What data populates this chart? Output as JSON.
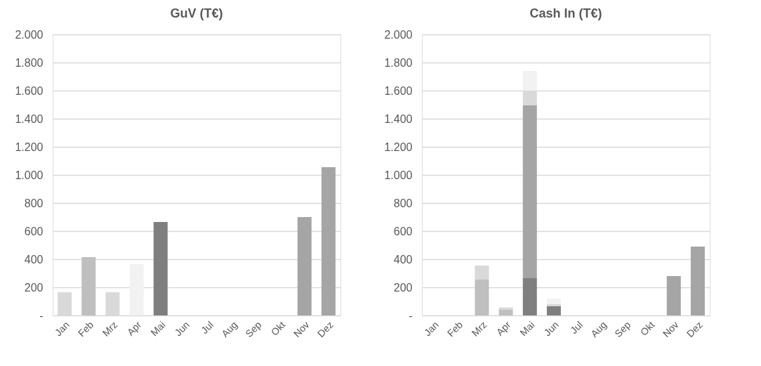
{
  "chart_data": [
    {
      "type": "bar",
      "title": "GuV (T€)",
      "categories": [
        "Jan",
        "Feb",
        "Mrz",
        "Apr",
        "Mai",
        "Jun",
        "Jul",
        "Aug",
        "Sep",
        "Okt",
        "Nov",
        "Dez"
      ],
      "values": [
        165,
        415,
        165,
        365,
        665,
        null,
        null,
        null,
        null,
        null,
        700,
        1055
      ],
      "colors": [
        "#d9d9d9",
        "#bfbfbf",
        "#d9d9d9",
        "#f2f2f2",
        "#7f7f7f",
        "#a5a5a5",
        "#a5a5a5",
        "#a5a5a5",
        "#a5a5a5",
        "#a5a5a5",
        "#a5a5a5",
        "#a5a5a5"
      ],
      "ylim": [
        0,
        2000
      ],
      "yticks": [
        {
          "value": 0,
          "label": "-"
        },
        {
          "value": 200,
          "label": "200"
        },
        {
          "value": 400,
          "label": "400"
        },
        {
          "value": 600,
          "label": "600"
        },
        {
          "value": 800,
          "label": "800"
        },
        {
          "value": 1000,
          "label": "1.000"
        },
        {
          "value": 1200,
          "label": "1.200"
        },
        {
          "value": 1400,
          "label": "1.400"
        },
        {
          "value": 1600,
          "label": "1.600"
        },
        {
          "value": 1800,
          "label": "1.800"
        },
        {
          "value": 2000,
          "label": "2.000"
        }
      ],
      "grid": "y",
      "legend": false
    },
    {
      "type": "bar",
      "title": "Cash In (T€)",
      "categories": [
        "Jan",
        "Feb",
        "Mrz",
        "Apr",
        "Mai",
        "Jun",
        "Jul",
        "Aug",
        "Sep",
        "Okt",
        "Nov",
        "Dez"
      ],
      "stacked": true,
      "series": [
        {
          "color": "#7f7f7f",
          "values": [
            null,
            null,
            null,
            null,
            265,
            65,
            null,
            null,
            null,
            null,
            null,
            null
          ]
        },
        {
          "color": "#a5a5a5",
          "values": [
            null,
            null,
            null,
            null,
            1230,
            null,
            null,
            null,
            null,
            null,
            280,
            490
          ]
        },
        {
          "color": "#bfbfbf",
          "values": [
            null,
            null,
            255,
            40,
            null,
            null,
            null,
            null,
            null,
            null,
            null,
            null
          ]
        },
        {
          "color": "#d9d9d9",
          "values": [
            null,
            null,
            100,
            17,
            105,
            15,
            null,
            null,
            null,
            null,
            null,
            null
          ]
        },
        {
          "color": "#f2f2f2",
          "values": [
            null,
            null,
            null,
            null,
            140,
            40,
            null,
            null,
            null,
            null,
            null,
            null
          ]
        }
      ],
      "ylim": [
        0,
        2000
      ],
      "yticks": [
        {
          "value": 0,
          "label": "-"
        },
        {
          "value": 200,
          "label": "200"
        },
        {
          "value": 400,
          "label": "400"
        },
        {
          "value": 600,
          "label": "600"
        },
        {
          "value": 800,
          "label": "800"
        },
        {
          "value": 1000,
          "label": "1.000"
        },
        {
          "value": 1200,
          "label": "1.200"
        },
        {
          "value": 1400,
          "label": "1.400"
        },
        {
          "value": 1600,
          "label": "1.600"
        },
        {
          "value": 1800,
          "label": "1.800"
        },
        {
          "value": 2000,
          "label": "2.000"
        }
      ],
      "grid": "y",
      "legend": false
    }
  ]
}
